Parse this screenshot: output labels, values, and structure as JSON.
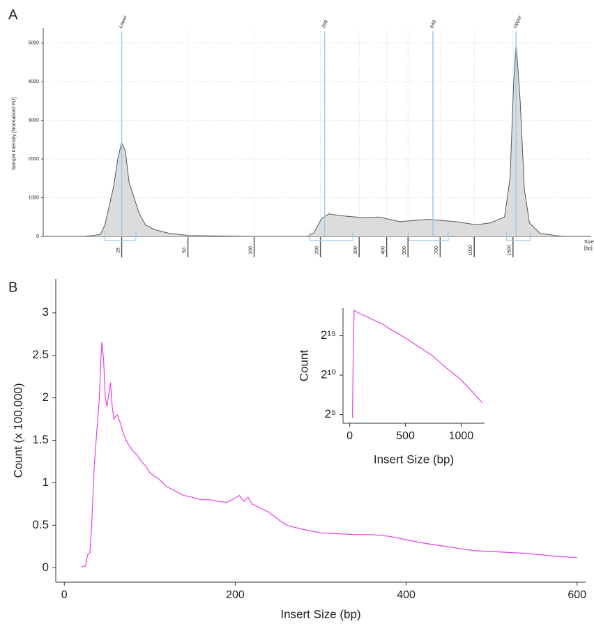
{
  "chart_data": [
    {
      "type": "area",
      "panel": "A",
      "ylabel": "Sample Intensity [Normalized FU]",
      "xlabel": [
        "Size",
        "[bp]"
      ],
      "xscale": "log",
      "xlim": [
        11,
        3400
      ],
      "xticks": [
        25,
        50,
        100,
        200,
        300,
        400,
        500,
        700,
        1000,
        1500
      ],
      "ylim": [
        0,
        5300
      ],
      "yticks": [
        0,
        1000,
        2000,
        3000,
        4000,
        5000
      ],
      "grid": true,
      "color": "#dcdcdc",
      "line_color": "#555555",
      "marker_color": "#9ccaee",
      "x": [
        11,
        17,
        20,
        21,
        23,
        24,
        25,
        26,
        27,
        30,
        32,
        35,
        41,
        51,
        91,
        175,
        187,
        202,
        218,
        253,
        318,
        368,
        458,
        614,
        824,
        1024,
        1184,
        1372,
        1455,
        1511,
        1550,
        1617,
        1690,
        1781,
        1990,
        2500,
        3400
      ],
      "values": [
        0,
        0,
        50,
        300,
        1300,
        2000,
        2430,
        2200,
        1400,
        600,
        300,
        180,
        80,
        20,
        0,
        0,
        100,
        450,
        580,
        530,
        480,
        500,
        380,
        440,
        380,
        300,
        350,
        500,
        1500,
        4000,
        5000,
        3500,
        1200,
        350,
        80,
        0,
        0
      ],
      "markers": [
        {
          "label": "Lower",
          "x": 25
        },
        {
          "label": "209",
          "x": 209
        },
        {
          "label": "649",
          "x": 649
        },
        {
          "label": "Upper",
          "x": 1550
        }
      ],
      "regions": [
        [
          21,
          29
        ],
        [
          179,
          281
        ],
        [
          504,
          762
        ],
        [
          1403,
          1800
        ]
      ]
    },
    {
      "type": "line",
      "panel": "B",
      "ylabel": "Count (x 100,000)",
      "xlabel": "Insert Size (bp)",
      "xlim": [
        -10,
        610
      ],
      "xticks": [
        0,
        200,
        400,
        600
      ],
      "ylim": [
        -0.17,
        3.4
      ],
      "yticks": [
        0,
        0.5,
        1,
        1.5,
        2,
        2.5,
        3
      ],
      "grid": false,
      "color": "#e63fe6",
      "x": [
        20,
        25,
        27,
        30,
        32,
        35,
        38,
        41,
        43,
        44,
        46,
        48,
        50,
        52,
        54,
        56,
        58,
        60,
        62,
        65,
        70,
        75,
        80,
        85,
        90,
        95,
        100,
        105,
        110,
        115,
        120,
        125,
        130,
        140,
        150,
        160,
        170,
        180,
        190,
        200,
        205,
        210,
        215,
        220,
        230,
        240,
        250,
        260,
        280,
        300,
        320,
        340,
        360,
        380,
        400,
        420,
        440,
        460,
        480,
        500,
        520,
        540,
        560,
        580,
        600
      ],
      "values": [
        0.01,
        0.02,
        0.15,
        0.18,
        0.5,
        1.2,
        1.6,
        2.0,
        2.5,
        2.66,
        2.45,
        2.0,
        1.9,
        2.05,
        2.18,
        1.9,
        1.75,
        1.78,
        1.8,
        1.72,
        1.55,
        1.45,
        1.38,
        1.33,
        1.25,
        1.2,
        1.12,
        1.08,
        1.05,
        1.0,
        0.95,
        0.93,
        0.9,
        0.85,
        0.83,
        0.8,
        0.8,
        0.78,
        0.77,
        0.82,
        0.85,
        0.78,
        0.83,
        0.75,
        0.7,
        0.65,
        0.57,
        0.5,
        0.45,
        0.41,
        0.4,
        0.39,
        0.39,
        0.37,
        0.33,
        0.29,
        0.26,
        0.23,
        0.2,
        0.19,
        0.18,
        0.17,
        0.15,
        0.13,
        0.12
      ]
    },
    {
      "type": "line",
      "ylabel": "Count",
      "xlabel": "Insert Size (bp)",
      "xlim": [
        -60,
        1210
      ],
      "xticks": [
        0,
        500,
        1000
      ],
      "yscale": "log",
      "ylim": [
        15,
        370000
      ],
      "yticks": [
        {
          "value": 32,
          "label": "2⁵"
        },
        {
          "value": 1024,
          "label": "2¹⁰"
        },
        {
          "value": 32768,
          "label": "2¹⁵"
        }
      ],
      "grid": false,
      "color": "#e63fe6",
      "x": [
        25,
        30,
        35,
        40,
        60,
        100,
        200,
        240,
        300,
        360,
        500,
        600,
        740,
        850,
        1000,
        1100,
        1190
      ],
      "values": [
        24,
        2000,
        60000,
        300000,
        270000,
        220000,
        140000,
        115000,
        90000,
        60000,
        27000,
        14000,
        5800,
        2200,
        680,
        240,
        90
      ]
    }
  ]
}
